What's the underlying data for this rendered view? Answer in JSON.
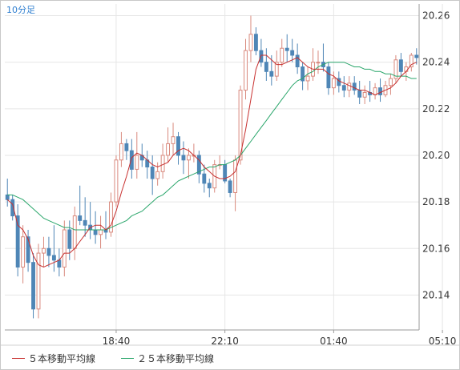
{
  "interval_label": "10分足",
  "colors": {
    "up_candle": "#d98a7e",
    "down_candle": "#4f86b6",
    "ma5": "#c8302f",
    "ma25": "#2aa66b",
    "grid": "#e6e6e6",
    "axis": "#9a9a9a"
  },
  "legend": {
    "ma5_label": "５本移動平均線",
    "ma25_label": "２５本移動平均線"
  },
  "chart_data": {
    "type": "candlestick",
    "y_axis_side": "right",
    "ylim": [
      20.125,
      20.265
    ],
    "y_ticks": [
      "20.26",
      "20.24",
      "20.22",
      "20.20",
      "20.18",
      "20.16",
      "20.14"
    ],
    "y_tick_values": [
      20.26,
      20.24,
      20.22,
      20.2,
      20.18,
      20.16,
      20.14
    ],
    "x_tick_labels": [
      "18:40",
      "22:10",
      "01:40",
      "05:10"
    ],
    "x_tick_indices": [
      21,
      42,
      63,
      84
    ],
    "grid": true,
    "series": [
      {
        "name": "５本移動平均線",
        "role": "ma5"
      },
      {
        "name": "２５本移動平均線",
        "role": "ma25"
      }
    ],
    "candles": [
      [
        20.183,
        20.19,
        20.178,
        20.181
      ],
      [
        20.181,
        20.183,
        20.172,
        20.174
      ],
      [
        20.174,
        20.179,
        20.148,
        20.152
      ],
      [
        20.152,
        20.17,
        20.145,
        20.165
      ],
      [
        20.165,
        20.168,
        20.15,
        20.154
      ],
      [
        20.154,
        20.158,
        20.13,
        20.134
      ],
      [
        20.134,
        20.162,
        20.13,
        20.158
      ],
      [
        20.158,
        20.165,
        20.152,
        20.16
      ],
      [
        20.16,
        20.165,
        20.152,
        20.157
      ],
      [
        20.157,
        20.17,
        20.15,
        20.155
      ],
      [
        20.155,
        20.16,
        20.148,
        20.152
      ],
      [
        20.152,
        20.172,
        20.148,
        20.168
      ],
      [
        20.168,
        20.172,
        20.155,
        20.16
      ],
      [
        20.16,
        20.178,
        20.155,
        20.174
      ],
      [
        20.174,
        20.187,
        20.17,
        20.172
      ],
      [
        20.172,
        20.182,
        20.165,
        20.17
      ],
      [
        20.17,
        20.18,
        20.164,
        20.168
      ],
      [
        20.168,
        20.176,
        20.162,
        20.166
      ],
      [
        20.166,
        20.174,
        20.16,
        20.168
      ],
      [
        20.168,
        20.176,
        20.164,
        20.167
      ],
      [
        20.167,
        20.184,
        20.165,
        20.18
      ],
      [
        20.18,
        20.2,
        20.178,
        20.198
      ],
      [
        20.198,
        20.21,
        20.195,
        20.205
      ],
      [
        20.205,
        20.207,
        20.198,
        20.202
      ],
      [
        20.202,
        20.207,
        20.19,
        20.194
      ],
      [
        20.194,
        20.21,
        20.19,
        20.2
      ],
      [
        20.2,
        20.205,
        20.195,
        20.198
      ],
      [
        20.198,
        20.202,
        20.19,
        20.195
      ],
      [
        20.195,
        20.2,
        20.183,
        20.19
      ],
      [
        20.19,
        20.197,
        20.187,
        20.193
      ],
      [
        20.193,
        20.205,
        20.19,
        20.2
      ],
      [
        20.2,
        20.212,
        20.197,
        20.205
      ],
      [
        20.205,
        20.214,
        20.2,
        20.208
      ],
      [
        20.208,
        20.21,
        20.196,
        20.2
      ],
      [
        20.2,
        20.206,
        20.192,
        20.198
      ],
      [
        20.198,
        20.203,
        20.19,
        20.2
      ],
      [
        20.2,
        20.205,
        20.197,
        20.2
      ],
      [
        20.2,
        20.202,
        20.188,
        20.192
      ],
      [
        20.192,
        20.196,
        20.184,
        20.188
      ],
      [
        20.188,
        20.19,
        20.182,
        20.186
      ],
      [
        20.186,
        20.198,
        20.184,
        20.196
      ],
      [
        20.196,
        20.2,
        20.194,
        20.196
      ],
      [
        20.196,
        20.198,
        20.188,
        20.189
      ],
      [
        20.189,
        20.19,
        20.182,
        20.184
      ],
      [
        20.184,
        20.2,
        20.176,
        20.198
      ],
      [
        20.198,
        20.23,
        20.196,
        20.228
      ],
      [
        20.228,
        20.25,
        20.224,
        20.245
      ],
      [
        20.245,
        20.26,
        20.24,
        20.252
      ],
      [
        20.252,
        20.255,
        20.243,
        20.245
      ],
      [
        20.245,
        20.25,
        20.238,
        20.24
      ],
      [
        20.24,
        20.246,
        20.232,
        20.236
      ],
      [
        20.236,
        20.243,
        20.23,
        20.234
      ],
      [
        20.234,
        20.245,
        20.232,
        20.24
      ],
      [
        20.24,
        20.25,
        20.238,
        20.246
      ],
      [
        20.246,
        20.252,
        20.24,
        20.245
      ],
      [
        20.245,
        20.25,
        20.24,
        20.243
      ],
      [
        20.243,
        20.248,
        20.235,
        20.238
      ],
      [
        20.238,
        20.24,
        20.228,
        20.232
      ],
      [
        20.232,
        20.238,
        20.228,
        20.234
      ],
      [
        20.234,
        20.246,
        20.232,
        20.24
      ],
      [
        20.24,
        20.245,
        20.235,
        20.24
      ],
      [
        20.24,
        20.248,
        20.236,
        20.238
      ],
      [
        20.238,
        20.24,
        20.226,
        20.229
      ],
      [
        20.229,
        20.236,
        20.226,
        20.233
      ],
      [
        20.233,
        20.236,
        20.227,
        20.23
      ],
      [
        20.23,
        20.234,
        20.225,
        20.228
      ],
      [
        20.228,
        20.234,
        20.225,
        20.231
      ],
      [
        20.231,
        20.234,
        20.226,
        20.228
      ],
      [
        20.228,
        20.232,
        20.222,
        20.225
      ],
      [
        20.225,
        20.23,
        20.222,
        20.227
      ],
      [
        20.227,
        20.232,
        20.223,
        20.226
      ],
      [
        20.226,
        20.231,
        20.224,
        20.229
      ],
      [
        20.229,
        20.233,
        20.223,
        20.226
      ],
      [
        20.226,
        20.232,
        20.225,
        20.23
      ],
      [
        20.23,
        20.235,
        20.226,
        20.233
      ],
      [
        20.233,
        20.243,
        20.231,
        20.241
      ],
      [
        20.241,
        20.244,
        20.234,
        20.236
      ],
      [
        20.236,
        20.24,
        20.232,
        20.238
      ],
      [
        20.238,
        20.244,
        20.236,
        20.243
      ],
      [
        20.243,
        20.246,
        20.239,
        20.242
      ]
    ],
    "ma5": [
      20.181,
      20.179,
      20.17,
      20.168,
      20.164,
      20.157,
      20.153,
      20.152,
      20.153,
      20.154,
      20.155,
      20.158,
      20.158,
      20.16,
      20.163,
      20.166,
      20.169,
      20.17,
      20.17,
      20.168,
      20.17,
      20.176,
      20.184,
      20.191,
      20.199,
      20.201,
      20.2,
      20.198,
      20.196,
      20.195,
      20.196,
      20.197,
      20.2,
      20.202,
      20.203,
      20.202,
      20.2,
      20.198,
      20.195,
      20.193,
      20.191,
      20.19,
      20.19,
      20.191,
      20.193,
      20.2,
      20.211,
      20.224,
      20.237,
      20.243,
      20.243,
      20.241,
      20.239,
      20.239,
      20.24,
      20.241,
      20.242,
      20.24,
      20.238,
      20.237,
      20.237,
      20.237,
      20.235,
      20.234,
      20.232,
      20.231,
      20.23,
      20.229,
      20.228,
      20.228,
      20.227,
      20.226,
      20.227,
      20.228,
      20.229,
      20.231,
      20.234,
      20.236,
      20.239,
      20.24
    ],
    "ma25": [
      20.183,
      20.183,
      20.182,
      20.181,
      20.179,
      20.177,
      20.175,
      20.173,
      20.172,
      20.171,
      20.17,
      20.169,
      20.169,
      20.168,
      20.168,
      20.168,
      20.168,
      20.168,
      20.168,
      20.168,
      20.169,
      20.17,
      20.171,
      20.172,
      20.174,
      20.175,
      20.176,
      20.178,
      20.18,
      20.182,
      20.183,
      20.185,
      20.187,
      20.189,
      20.19,
      20.191,
      20.192,
      20.193,
      20.194,
      20.195,
      20.195,
      20.196,
      20.196,
      20.197,
      20.198,
      20.2,
      20.203,
      20.206,
      20.209,
      20.212,
      20.215,
      20.218,
      20.221,
      20.224,
      20.227,
      20.23,
      20.232,
      20.233,
      20.235,
      20.236,
      20.238,
      20.239,
      20.24,
      20.24,
      20.24,
      20.24,
      20.239,
      20.238,
      20.238,
      20.237,
      20.237,
      20.236,
      20.236,
      20.235,
      20.235,
      20.234,
      20.234,
      20.234,
      20.233,
      20.233
    ]
  }
}
